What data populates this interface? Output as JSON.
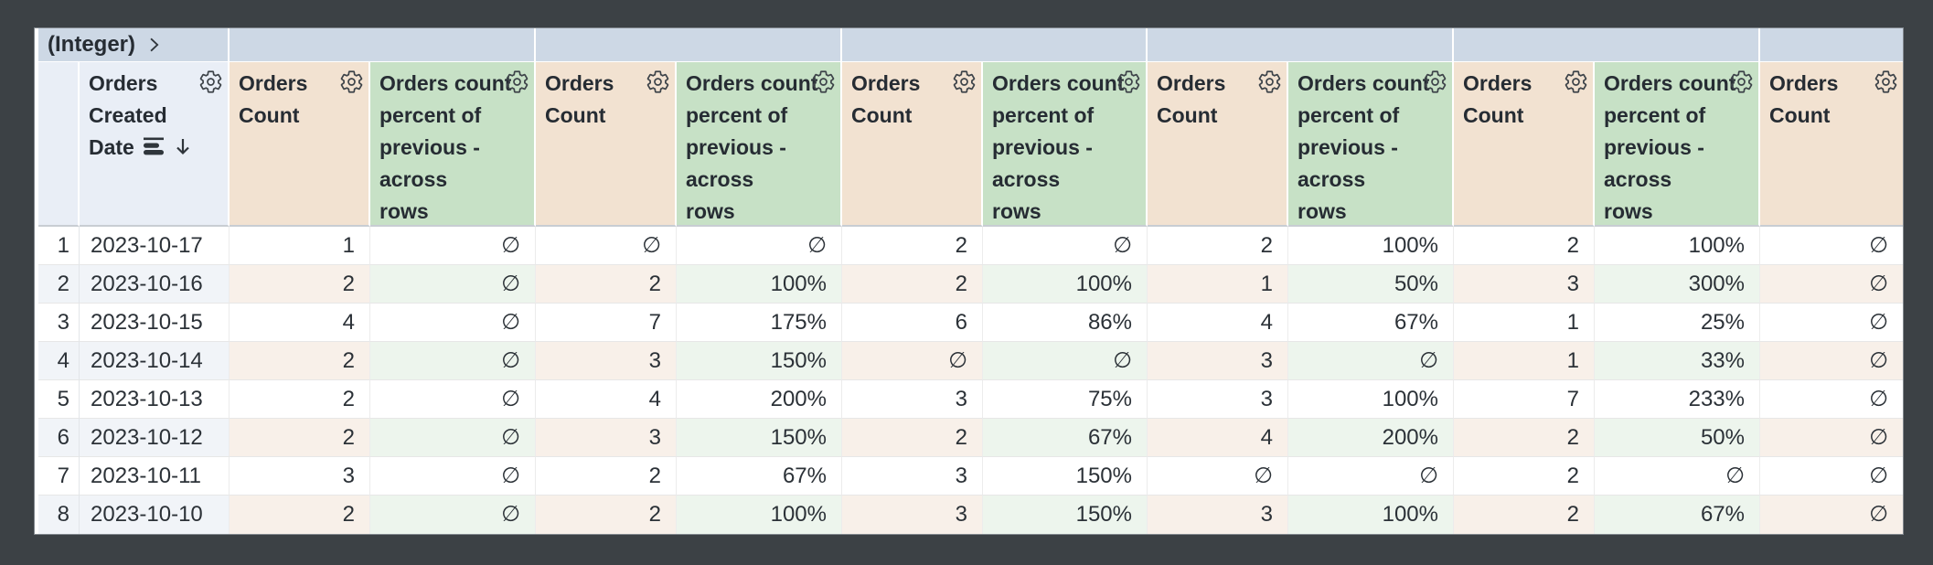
{
  "canvas": {
    "background": "#3c4145"
  },
  "pivot_band": {
    "groups": [
      {
        "label": "(Integer)",
        "expand": true,
        "span": 2
      },
      {
        "label": "",
        "expand": false,
        "span": 2
      },
      {
        "label": "",
        "expand": false,
        "span": 2
      },
      {
        "label": "",
        "expand": false,
        "span": 2
      },
      {
        "label": "",
        "expand": false,
        "span": 2
      },
      {
        "label": "",
        "expand": false,
        "span": 2
      },
      {
        "label": "",
        "expand": false,
        "span": 1
      }
    ]
  },
  "columns": [
    {
      "kind": "rownum",
      "label": "",
      "label_lines": [],
      "gear": false
    },
    {
      "kind": "date",
      "label": "Orders Created Date",
      "label_lines": [
        "Orders",
        "Created",
        "Date"
      ],
      "gear": true,
      "subtotal_icon": true,
      "sort_desc_icon": true
    },
    {
      "kind": "count",
      "label": "Orders Count",
      "label_lines": [
        "Orders",
        "Count"
      ],
      "gear": true
    },
    {
      "kind": "percent",
      "label": "Orders count percent of previous - across rows",
      "label_lines": [
        "Orders count",
        "percent of",
        "previous -",
        "across",
        "rows"
      ],
      "gear": true
    },
    {
      "kind": "count",
      "label": "Orders Count",
      "label_lines": [
        "Orders",
        "Count"
      ],
      "gear": true
    },
    {
      "kind": "percent",
      "label": "Orders count percent of previous - across rows",
      "label_lines": [
        "Orders count",
        "percent of",
        "previous -",
        "across",
        "rows"
      ],
      "gear": true
    },
    {
      "kind": "count",
      "label": "Orders Count",
      "label_lines": [
        "Orders",
        "Count"
      ],
      "gear": true
    },
    {
      "kind": "percent",
      "label": "Orders count percent of previous - across rows",
      "label_lines": [
        "Orders count",
        "percent of",
        "previous -",
        "across",
        "rows"
      ],
      "gear": true
    },
    {
      "kind": "count",
      "label": "Orders Count",
      "label_lines": [
        "Orders",
        "Count"
      ],
      "gear": true
    },
    {
      "kind": "percent",
      "label": "Orders count percent of previous - across rows",
      "label_lines": [
        "Orders count",
        "percent of",
        "previous -",
        "across",
        "rows"
      ],
      "gear": true
    },
    {
      "kind": "count",
      "label": "Orders Count",
      "label_lines": [
        "Orders",
        "Count"
      ],
      "gear": true
    },
    {
      "kind": "percent",
      "label": "Orders count percent of previous - across rows",
      "label_lines": [
        "Orders count",
        "percent of",
        "previous -",
        "across",
        "rows"
      ],
      "gear": true
    },
    {
      "kind": "count",
      "label": "Orders Count",
      "label_lines": [
        "Orders",
        "Count"
      ],
      "gear": true
    }
  ],
  "null_symbol": "∅",
  "rows": [
    {
      "cells": [
        "1",
        "2023-10-17",
        "1",
        "∅",
        "∅",
        "∅",
        "2",
        "∅",
        "2",
        "100%",
        "2",
        "100%",
        "∅"
      ]
    },
    {
      "cells": [
        "2",
        "2023-10-16",
        "2",
        "∅",
        "2",
        "100%",
        "2",
        "100%",
        "1",
        "50%",
        "3",
        "300%",
        "∅"
      ]
    },
    {
      "cells": [
        "3",
        "2023-10-15",
        "4",
        "∅",
        "7",
        "175%",
        "6",
        "86%",
        "4",
        "67%",
        "1",
        "25%",
        "∅"
      ]
    },
    {
      "cells": [
        "4",
        "2023-10-14",
        "2",
        "∅",
        "3",
        "150%",
        "∅",
        "∅",
        "3",
        "∅",
        "1",
        "33%",
        "∅"
      ]
    },
    {
      "cells": [
        "5",
        "2023-10-13",
        "2",
        "∅",
        "4",
        "200%",
        "3",
        "75%",
        "3",
        "100%",
        "7",
        "233%",
        "∅"
      ]
    },
    {
      "cells": [
        "6",
        "2023-10-12",
        "2",
        "∅",
        "3",
        "150%",
        "2",
        "67%",
        "4",
        "200%",
        "2",
        "50%",
        "∅"
      ]
    },
    {
      "cells": [
        "7",
        "2023-10-11",
        "3",
        "∅",
        "2",
        "67%",
        "3",
        "150%",
        "∅",
        "∅",
        "2",
        "∅",
        "∅"
      ]
    },
    {
      "cells": [
        "8",
        "2023-10-10",
        "2",
        "∅",
        "2",
        "100%",
        "3",
        "150%",
        "3",
        "100%",
        "2",
        "67%",
        "∅"
      ]
    }
  ],
  "colors": {
    "frame": "#3c4145",
    "band": "#cdd8e5",
    "dimension_header": "#e9eef6",
    "count_header": "#f2e2d1",
    "percent_header": "#c7e1c6",
    "even_row_dimension": "#f1f4f8",
    "even_row_count": "#f8f0e9",
    "even_row_percent": "#edf5ed",
    "text": "#2b3137"
  }
}
